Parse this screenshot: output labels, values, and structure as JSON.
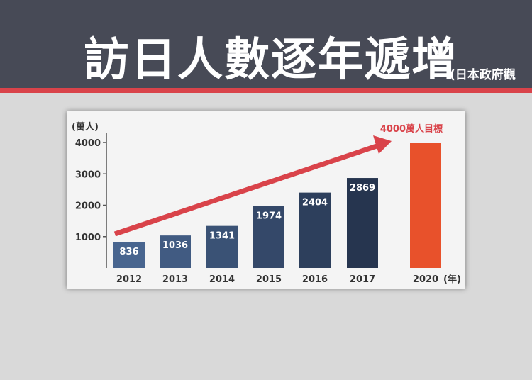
{
  "header": {
    "title": "訪日人數逐年遞增",
    "subtitle": "(日本政府觀"
  },
  "colors": {
    "banner": "#474a56",
    "stripe": "#d9434a",
    "bar_start": "#48658f",
    "bar_end": "#26354f",
    "target_bar": "#e8512b",
    "arrow": "#d9434a"
  },
  "chart_data": {
    "type": "bar",
    "ylabel": "(萬人)",
    "ylim": [
      0,
      4000
    ],
    "yticks": [
      1000,
      2000,
      3000,
      4000
    ],
    "x_unit": "(年)",
    "categories": [
      "2012",
      "2013",
      "2014",
      "2015",
      "2016",
      "2017",
      "2020"
    ],
    "values": [
      836,
      1036,
      1341,
      1974,
      2404,
      2869,
      4000
    ],
    "data_labels": [
      "836",
      "1036",
      "1341",
      "1974",
      "2404",
      "2869",
      ""
    ],
    "target_label": "4000萬人目標",
    "grid": false,
    "annotations": [
      "upward trend arrow"
    ]
  }
}
